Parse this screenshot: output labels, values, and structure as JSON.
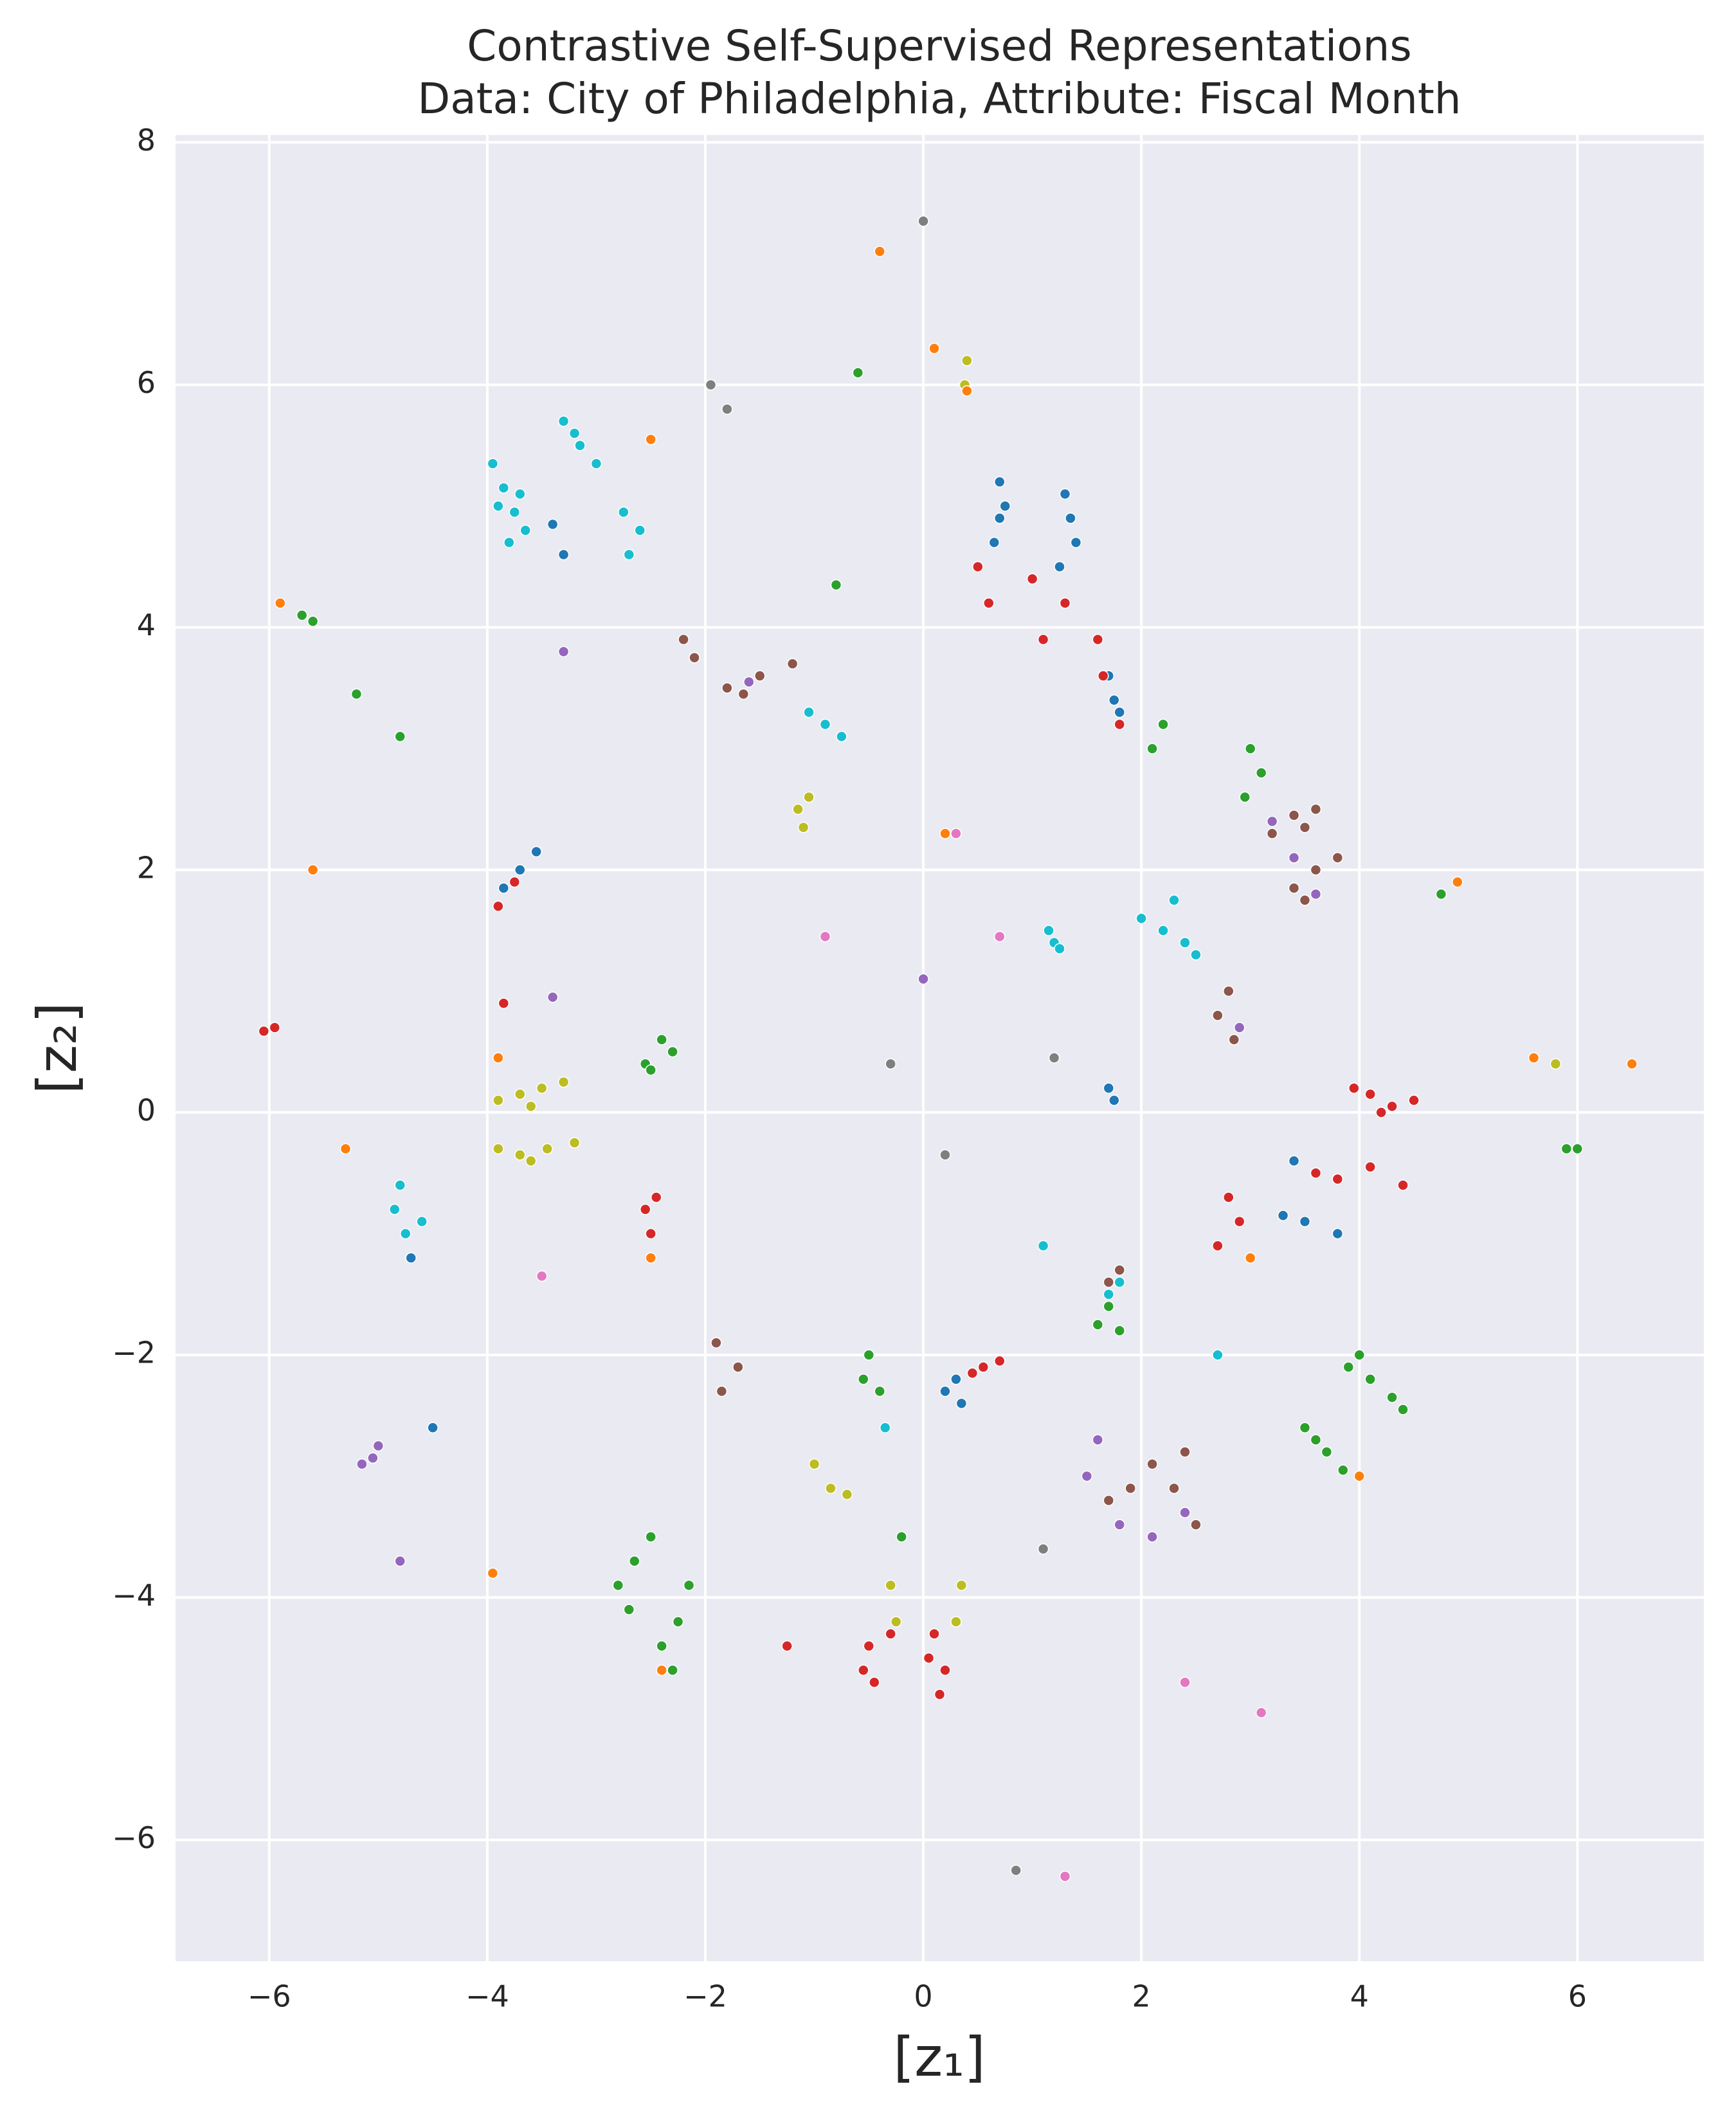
{
  "chart_data": {
    "type": "scatter",
    "title": "Contrastive Self-Supervised Representations",
    "subtitle": "Data: City of Philadelphia, Attribute: Fiscal Month",
    "xlabel": "[z₁]",
    "ylabel": "[z₂]",
    "xlim": [
      -6.86,
      7.16
    ],
    "ylim": [
      -7.0,
      8.06
    ],
    "xticks": [
      {
        "value": -6,
        "label": "−6"
      },
      {
        "value": -4,
        "label": "−4"
      },
      {
        "value": -2,
        "label": "−2"
      },
      0,
      2,
      4,
      6
    ],
    "yticks": [
      {
        "value": -6,
        "label": "−6"
      },
      {
        "value": -4,
        "label": "−4"
      },
      {
        "value": -2,
        "label": "−2"
      },
      0,
      2,
      4,
      6,
      8
    ],
    "grid": true,
    "background": "#eaeaf2",
    "series": [
      {
        "color": "#17becf",
        "x": [
          -3.95,
          -3.85,
          -3.75,
          -3.65,
          -3.9,
          -3.7,
          -3.8,
          -3.3,
          -3.15,
          -3.0,
          -3.2,
          -2.75,
          -2.6,
          -2.7,
          -1.05,
          -0.9,
          -0.75,
          1.15,
          1.2,
          1.25,
          2.0,
          2.2,
          2.4,
          2.5,
          2.3,
          -4.85,
          -4.75,
          -4.7,
          -4.8,
          -4.6,
          1.7,
          1.8,
          -0.35,
          2.7,
          1.1
        ],
        "values": [
          5.35,
          5.15,
          4.95,
          4.8,
          5.0,
          5.1,
          4.7,
          5.7,
          5.5,
          5.35,
          5.6,
          4.95,
          4.8,
          4.6,
          3.3,
          3.2,
          3.1,
          1.5,
          1.4,
          1.35,
          1.6,
          1.5,
          1.4,
          1.3,
          1.75,
          -0.8,
          -1.0,
          -1.2,
          -0.6,
          -0.9,
          -1.5,
          -1.4,
          -2.6,
          -2.0,
          -1.1
        ]
      },
      {
        "color": "#1f77b4",
        "x": [
          0.7,
          0.7,
          0.75,
          0.65,
          1.35,
          1.3,
          1.25,
          1.4,
          -3.4,
          -3.3,
          1.75,
          1.7,
          1.8,
          -3.85,
          -3.7,
          -3.55,
          1.7,
          1.75,
          3.4,
          3.6,
          3.5,
          3.8,
          3.3,
          0.2,
          0.35,
          0.3,
          -4.7,
          -4.5
        ],
        "values": [
          5.2,
          4.9,
          5.0,
          4.7,
          4.9,
          5.1,
          4.5,
          4.7,
          4.85,
          4.6,
          3.4,
          3.6,
          3.3,
          1.85,
          2.0,
          2.15,
          0.2,
          0.1,
          -0.4,
          -0.5,
          -0.9,
          -1.0,
          -0.85,
          -2.3,
          -2.4,
          -2.2,
          -1.2,
          -2.6
        ]
      },
      {
        "color": "#d62728",
        "x": [
          0.5,
          0.6,
          1.0,
          1.3,
          1.6,
          1.1,
          1.8,
          1.65,
          -3.9,
          -3.75,
          4.1,
          4.3,
          4.5,
          3.95,
          4.2,
          4.1,
          4.4,
          3.6,
          3.8,
          2.9,
          2.7,
          2.8,
          -2.55,
          -2.5,
          -2.45,
          -6.05,
          -5.95,
          0.55,
          0.7,
          0.45,
          -0.5,
          -0.45,
          -0.3,
          -0.55,
          0.05,
          0.15,
          0.1,
          0.2,
          -3.85,
          -1.25
        ],
        "values": [
          4.5,
          4.2,
          4.4,
          4.2,
          3.9,
          3.9,
          3.2,
          3.6,
          1.7,
          1.9,
          0.15,
          0.05,
          0.1,
          0.2,
          0.0,
          -0.45,
          -0.6,
          -0.5,
          -0.55,
          -0.9,
          -1.1,
          -0.7,
          -0.8,
          -1.0,
          -0.7,
          0.67,
          0.7,
          -2.1,
          -2.05,
          -2.15,
          -4.4,
          -4.7,
          -4.3,
          -4.6,
          -4.5,
          -4.8,
          -4.3,
          -4.6,
          0.9,
          -4.4
        ]
      },
      {
        "color": "#2ca02c",
        "x": [
          -2.55,
          -2.4,
          -2.3,
          -2.5,
          3.0,
          3.1,
          2.95,
          2.1,
          2.2,
          3.9,
          4.1,
          4.3,
          4.4,
          4.0,
          3.5,
          3.7,
          3.85,
          3.6,
          1.6,
          1.8,
          1.7,
          -0.55,
          -0.4,
          -0.5,
          -2.8,
          -2.65,
          -2.5,
          -2.4,
          -2.25,
          -2.15,
          -2.7,
          -2.3,
          -0.2,
          -5.7,
          -5.6,
          -0.6,
          4.75,
          6.0,
          5.9,
          -0.8,
          -5.2,
          -4.8
        ],
        "values": [
          0.4,
          0.6,
          0.5,
          0.35,
          3.0,
          2.8,
          2.6,
          3.0,
          3.2,
          -2.1,
          -2.2,
          -2.35,
          -2.45,
          -2.0,
          -2.6,
          -2.8,
          -2.95,
          -2.7,
          -1.75,
          -1.8,
          -1.6,
          -2.2,
          -2.3,
          -2.0,
          -3.9,
          -3.7,
          -3.5,
          -4.4,
          -4.2,
          -3.9,
          -4.1,
          -4.6,
          -3.5,
          4.1,
          4.05,
          6.1,
          1.8,
          -0.3,
          -0.3,
          4.35,
          3.45,
          3.1
        ]
      },
      {
        "color": "#9467bd",
        "x": [
          -5.15,
          -5.0,
          -5.05,
          2.7,
          2.9,
          1.5,
          1.8,
          2.1,
          1.6,
          3.2,
          3.6,
          3.4,
          -1.6,
          -3.4,
          2.4,
          -3.3,
          -4.8,
          0.0
        ],
        "values": [
          -2.9,
          -2.75,
          -2.85,
          0.8,
          0.7,
          -3.0,
          -3.4,
          -3.5,
          -2.7,
          2.4,
          1.8,
          2.1,
          3.55,
          0.95,
          -3.3,
          3.8,
          -3.7,
          1.1
        ]
      },
      {
        "color": "#8c564b",
        "x": [
          -1.8,
          -1.5,
          -1.2,
          -1.65,
          3.2,
          3.4,
          3.6,
          3.5,
          3.4,
          3.6,
          3.8,
          3.5,
          2.7,
          2.8,
          2.85,
          1.7,
          1.8,
          1.9,
          2.1,
          2.3,
          2.5,
          1.7,
          2.4,
          -1.9,
          -1.7,
          -1.85,
          -2.2,
          -2.1
        ],
        "values": [
          3.5,
          3.6,
          3.7,
          3.45,
          2.3,
          2.45,
          2.5,
          2.35,
          1.85,
          2.0,
          2.1,
          1.75,
          0.8,
          1.0,
          0.6,
          -1.4,
          -1.3,
          -3.1,
          -2.9,
          -3.1,
          -3.4,
          -3.2,
          -2.8,
          -1.9,
          -2.1,
          -2.3,
          3.9,
          3.75
        ]
      },
      {
        "color": "#bcbd22",
        "x": [
          -3.9,
          -3.7,
          -3.5,
          -3.3,
          -3.6,
          -3.9,
          -3.7,
          -3.45,
          -3.2,
          -3.6,
          -1.15,
          -1.05,
          -1.1,
          0.4,
          0.38,
          -1.0,
          -0.85,
          -0.7,
          -0.3,
          -0.25,
          0.3,
          0.35,
          5.8
        ],
        "values": [
          0.1,
          0.15,
          0.2,
          0.25,
          0.05,
          -0.3,
          -0.35,
          -0.3,
          -0.25,
          -0.4,
          2.5,
          2.6,
          2.35,
          6.2,
          6.0,
          -2.9,
          -3.1,
          -3.15,
          -3.9,
          -4.2,
          -4.2,
          -3.9,
          0.4
        ]
      },
      {
        "color": "#ff7f0e",
        "x": [
          -5.9,
          -0.4,
          0.1,
          0.4,
          -2.5,
          -5.6,
          -5.3,
          4.9,
          6.5,
          5.6,
          3.0,
          -2.5,
          -3.95,
          4.0,
          -2.4,
          0.2,
          -0.3,
          -3.9
        ],
        "values": [
          4.2,
          7.1,
          6.3,
          5.95,
          5.55,
          2.0,
          -0.3,
          1.9,
          0.4,
          0.45,
          -1.2,
          -1.2,
          -3.8,
          -3.0,
          -4.6,
          2.3,
          0.4,
          0.45
        ]
      },
      {
        "color": "#e377c2",
        "x": [
          -0.9,
          0.3,
          2.4,
          3.1,
          1.3,
          0.7,
          -3.5
        ],
        "values": [
          1.45,
          2.3,
          -4.7,
          -4.95,
          -6.3,
          1.45,
          -1.35
        ]
      },
      {
        "color": "#7f7f7f",
        "x": [
          0.0,
          -1.95,
          -1.8,
          0.85,
          -0.3,
          1.1,
          0.2,
          1.2
        ],
        "values": [
          7.35,
          6.0,
          5.8,
          -6.25,
          0.4,
          -3.6,
          -0.35,
          0.45
        ]
      }
    ]
  }
}
